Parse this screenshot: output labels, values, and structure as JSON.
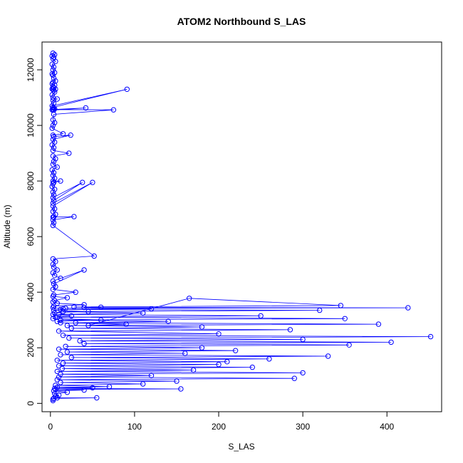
{
  "chart_data": {
    "type": "scatter",
    "title": "ATOM2 Northbound S_LAS",
    "xlabel": "S_LAS",
    "ylabel": "Altitude (m)",
    "xlim": [
      -10,
      465
    ],
    "ylim": [
      -300,
      13000
    ],
    "x_ticks": [
      0,
      100,
      200,
      300,
      400
    ],
    "x_tick_labels": [
      "0",
      "100",
      "200",
      "300",
      "400"
    ],
    "y_ticks": [
      0,
      2000,
      4000,
      6000,
      8000,
      10000,
      12000
    ],
    "y_tick_labels": [
      "0",
      "2000",
      "4000",
      "6000",
      "8000",
      "10000",
      "12000"
    ],
    "grid": false,
    "line_and_points": true,
    "colors": {
      "series": "#0000ff",
      "axis": "#000000"
    },
    "series": [
      {
        "x": [
          3,
          5,
          2,
          4,
          3,
          6,
          2,
          4,
          3,
          5,
          2,
          3,
          4,
          6,
          3,
          2,
          5,
          3,
          4,
          2,
          6,
          3,
          4,
          5,
          2,
          3,
          8,
          3,
          4,
          2,
          91,
          3,
          4,
          5,
          3,
          2,
          4,
          42,
          3,
          75,
          4,
          3,
          5,
          3,
          2,
          15,
          3,
          4,
          24,
          3,
          5,
          2,
          4,
          3,
          22,
          3,
          6,
          4,
          3,
          8,
          2,
          4,
          3,
          5,
          3,
          12,
          4,
          3,
          2,
          5,
          3,
          4,
          3,
          38,
          4,
          3,
          50,
          3,
          5,
          3,
          6,
          3,
          4,
          28,
          3,
          4,
          3,
          52,
          3,
          6,
          3,
          4,
          8,
          3,
          5,
          12,
          3,
          40,
          4,
          6,
          3,
          30,
          4,
          3,
          20,
          5,
          3,
          8,
          40,
          4,
          3,
          15,
          4,
          45,
          5,
          3,
          25,
          6,
          3,
          60,
          8,
          12,
          90,
          45,
          165,
          345,
          28,
          60,
          40,
          425,
          18,
          120,
          12,
          320,
          15,
          110,
          10,
          250,
          8,
          350,
          12,
          140,
          30,
          390,
          20,
          180,
          25,
          285,
          10,
          200,
          15,
          452,
          22,
          300,
          35,
          405,
          40,
          355,
          18,
          180,
          10,
          220,
          20,
          160,
          12,
          330,
          25,
          260,
          8,
          210,
          15,
          200,
          10,
          240,
          14,
          170,
          8,
          300,
          12,
          120,
          10,
          290,
          8,
          150,
          12,
          110,
          6,
          70,
          8,
          50,
          5,
          155,
          6,
          40,
          4,
          20,
          5,
          10,
          6,
          8,
          55,
          4,
          3,
          3
        ],
        "y": [
          12600,
          12550,
          12500,
          12450,
          12400,
          12300,
          12200,
          12100,
          12000,
          11900,
          11850,
          11800,
          11700,
          11600,
          11550,
          11500,
          11450,
          11400,
          11350,
          11310,
          11305,
          11300,
          11250,
          11200,
          11100,
          11000,
          10950,
          10900,
          10800,
          10700,
          11300,
          10650,
          10620,
          10600,
          10580,
          10560,
          10550,
          10630,
          10570,
          10560,
          10400,
          10200,
          10100,
          10000,
          9900,
          9700,
          9650,
          9600,
          9650,
          9500,
          9400,
          9300,
          9200,
          9100,
          9000,
          8900,
          8800,
          8700,
          8600,
          8500,
          8400,
          8300,
          8200,
          8100,
          8000,
          8000,
          7950,
          7900,
          7800,
          7700,
          7600,
          7500,
          7400,
          7950,
          7300,
          7200,
          7950,
          7100,
          7000,
          6900,
          6800,
          6700,
          6700,
          6720,
          6600,
          6500,
          6400,
          5300,
          5200,
          5100,
          5000,
          4900,
          4800,
          4700,
          4600,
          4500,
          4400,
          4800,
          4300,
          4200,
          4100,
          4000,
          3900,
          3850,
          3800,
          3700,
          3650,
          3600,
          3550,
          3500,
          3450,
          3400,
          3350,
          3300,
          3250,
          3200,
          3150,
          3100,
          3050,
          3000,
          2950,
          2900,
          2850,
          2800,
          3780,
          3520,
          3470,
          3460,
          3450,
          3440,
          3420,
          3400,
          3380,
          3350,
          3300,
          3250,
          3200,
          3150,
          3100,
          3050,
          3000,
          2950,
          2900,
          2850,
          2800,
          2750,
          2700,
          2650,
          2600,
          2500,
          2450,
          2400,
          2350,
          2300,
          2250,
          2200,
          2150,
          2100,
          2050,
          2000,
          1950,
          1900,
          1850,
          1800,
          1750,
          1700,
          1650,
          1600,
          1550,
          1500,
          1450,
          1400,
          1350,
          1300,
          1250,
          1200,
          1150,
          1100,
          1050,
          1000,
          950,
          900,
          850,
          800,
          750,
          700,
          650,
          600,
          580,
          560,
          540,
          520,
          500,
          480,
          450,
          400,
          350,
          300,
          250,
          200,
          200,
          180,
          150,
          100
        ]
      }
    ]
  }
}
